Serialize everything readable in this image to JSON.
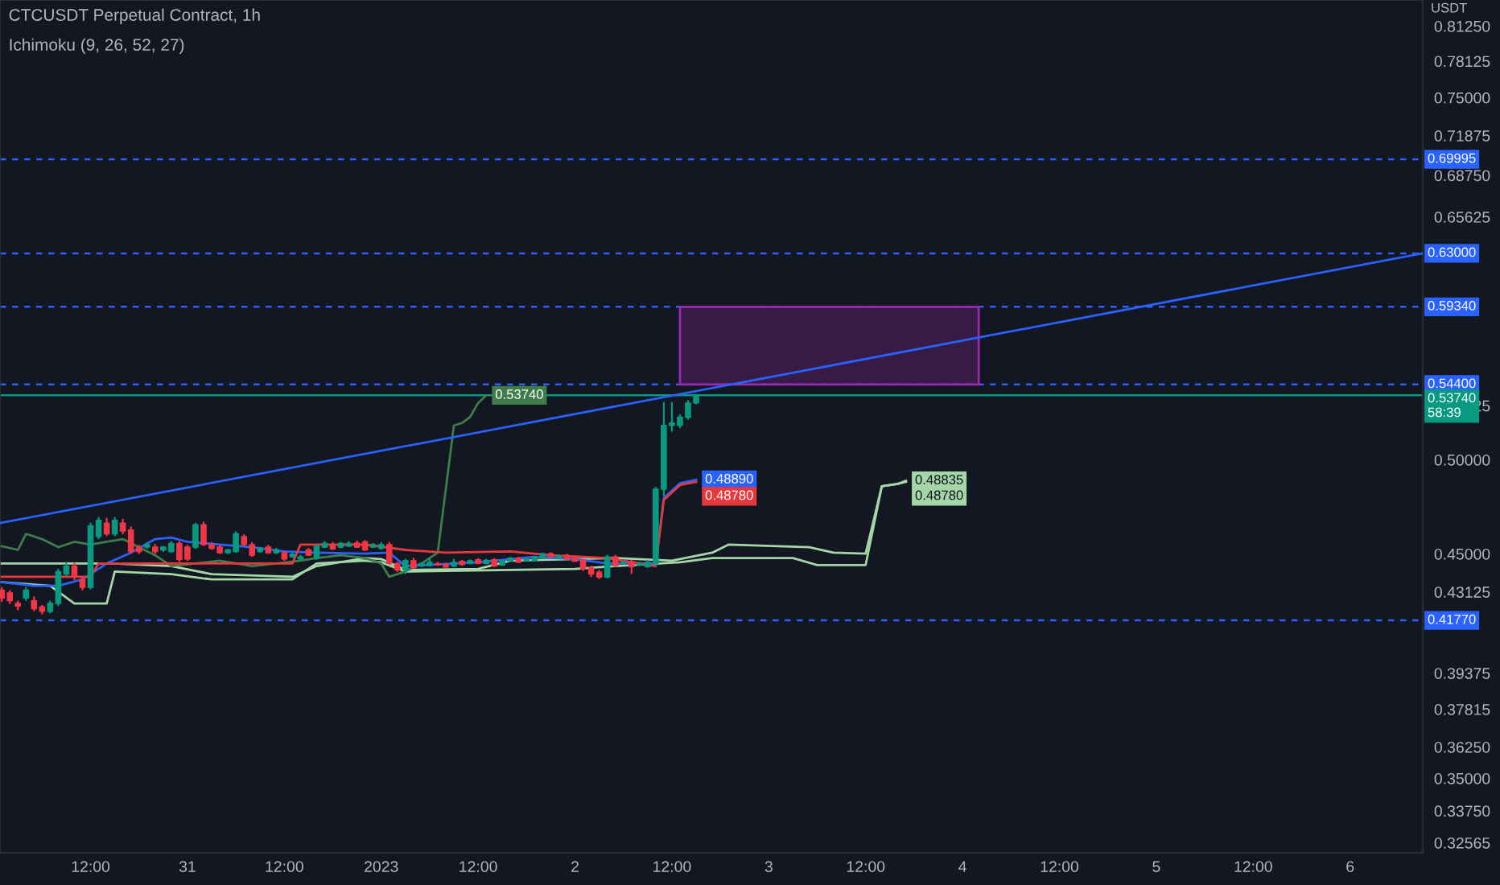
{
  "chart_data": {
    "type": "candlestick",
    "title": "CTCUSDT Perpetual Contract, 1h",
    "subtitle": "Ichimoku (9, 26, 52, 27)",
    "ylabel": "USDT",
    "log": "y",
    "ylim": [
      0.322,
      0.8366
    ],
    "xlim": [
      "2022-12-30T00:47",
      "2023-01-06T09:00"
    ],
    "yticks": [
      {
        "value": 0.8125,
        "label": "0.81250"
      },
      0.78125,
      {
        "value": 0.75,
        "label": "0.75000"
      },
      0.71875,
      {
        "value": 0.6875,
        "label": "0.68750"
      },
      0.65625,
      0.53125,
      {
        "value": 0.5,
        "label": "0.50000"
      },
      {
        "value": 0.45,
        "label": "0.45000"
      },
      0.43125,
      0.39375,
      0.37815,
      {
        "value": 0.3625,
        "label": "0.36250"
      },
      {
        "value": 0.35,
        "label": "0.35000"
      },
      {
        "value": 0.3375,
        "label": "0.33750"
      },
      0.32565
    ],
    "xticks": [
      {
        "value": "2022-12-30T12:00",
        "label": "12:00"
      },
      {
        "value": "2022-12-31",
        "label": "31"
      },
      {
        "value": "2022-12-31T12:00",
        "label": "12:00"
      },
      {
        "value": "2023-01-01",
        "label": "2023"
      },
      {
        "value": "2023-01-01T12:00",
        "label": "12:00"
      },
      {
        "value": "2023-01-02",
        "label": "2"
      },
      {
        "value": "2023-01-02T12:00",
        "label": "12:00"
      },
      {
        "value": "2023-01-03",
        "label": "3"
      },
      {
        "value": "2023-01-03T12:00",
        "label": "12:00"
      },
      {
        "value": "2023-01-04",
        "label": "4"
      },
      {
        "value": "2023-01-04T12:00",
        "label": "12:00"
      },
      {
        "value": "2023-01-05",
        "label": "5"
      },
      {
        "value": "2023-01-05T12:00",
        "label": "12:00"
      },
      {
        "value": "2023-01-06",
        "label": "6"
      }
    ],
    "x": [
      "2022-12-30T01:00",
      "2022-12-30T02:00",
      "2022-12-30T03:00",
      "2022-12-30T04:00",
      "2022-12-30T05:00",
      "2022-12-30T06:00",
      "2022-12-30T07:00",
      "2022-12-30T08:00",
      "2022-12-30T09:00",
      "2022-12-30T10:00",
      "2022-12-30T11:00",
      "2022-12-30T12:00",
      "2022-12-30T13:00",
      "2022-12-30T14:00",
      "2022-12-30T15:00",
      "2022-12-30T16:00",
      "2022-12-30T17:00",
      "2022-12-30T18:00",
      "2022-12-30T19:00",
      "2022-12-30T20:00",
      "2022-12-30T21:00",
      "2022-12-30T22:00",
      "2022-12-30T23:00",
      "2022-12-31T00:00",
      "2022-12-31T01:00",
      "2022-12-31T02:00",
      "2022-12-31T03:00",
      "2022-12-31T04:00",
      "2022-12-31T05:00",
      "2022-12-31T06:00",
      "2022-12-31T07:00",
      "2022-12-31T08:00",
      "2022-12-31T09:00",
      "2022-12-31T10:00",
      "2022-12-31T11:00",
      "2022-12-31T12:00",
      "2022-12-31T13:00",
      "2022-12-31T14:00",
      "2022-12-31T15:00",
      "2022-12-31T16:00",
      "2022-12-31T17:00",
      "2022-12-31T18:00",
      "2022-12-31T19:00",
      "2022-12-31T20:00",
      "2022-12-31T21:00",
      "2022-12-31T22:00",
      "2022-12-31T23:00",
      "2023-01-01T00:00",
      "2023-01-01T01:00",
      "2023-01-01T02:00",
      "2023-01-01T03:00",
      "2023-01-01T04:00",
      "2023-01-01T05:00",
      "2023-01-01T06:00",
      "2023-01-01T07:00",
      "2023-01-01T08:00",
      "2023-01-01T09:00",
      "2023-01-01T10:00",
      "2023-01-01T11:00",
      "2023-01-01T12:00",
      "2023-01-01T13:00",
      "2023-01-01T14:00",
      "2023-01-01T15:00",
      "2023-01-01T16:00",
      "2023-01-01T17:00",
      "2023-01-01T18:00",
      "2023-01-01T19:00",
      "2023-01-01T20:00",
      "2023-01-01T21:00",
      "2023-01-01T22:00",
      "2023-01-01T23:00",
      "2023-01-02T00:00",
      "2023-01-02T01:00",
      "2023-01-02T02:00",
      "2023-01-02T03:00",
      "2023-01-02T04:00",
      "2023-01-02T05:00",
      "2023-01-02T06:00",
      "2023-01-02T07:00",
      "2023-01-02T08:00",
      "2023-01-02T09:00",
      "2023-01-02T10:00",
      "2023-01-02T11:00",
      "2023-01-02T12:00",
      "2023-01-02T13:00",
      "2023-01-02T14:00",
      "2023-01-02T15:00"
    ],
    "ohlc": [
      [
        0.4321,
        0.4335,
        0.4265,
        0.4283
      ],
      [
        0.4308,
        0.432,
        0.4255,
        0.427
      ],
      [
        0.4257,
        0.427,
        0.4225,
        0.4245
      ],
      [
        0.4283,
        0.4335,
        0.427,
        0.4321
      ],
      [
        0.427,
        0.429,
        0.422,
        0.4232
      ],
      [
        0.424,
        0.425,
        0.4205,
        0.422
      ],
      [
        0.422,
        0.427,
        0.421,
        0.4257
      ],
      [
        0.4257,
        0.4425,
        0.4245,
        0.4412
      ],
      [
        0.4399,
        0.446,
        0.439,
        0.4439
      ],
      [
        0.4439,
        0.4455,
        0.437,
        0.4386
      ],
      [
        0.4373,
        0.439,
        0.432,
        0.4334
      ],
      [
        0.4334,
        0.466,
        0.4325,
        0.4644
      ],
      [
        0.4588,
        0.469,
        0.4575,
        0.4672
      ],
      [
        0.4658,
        0.4685,
        0.459,
        0.4602
      ],
      [
        0.4602,
        0.469,
        0.459,
        0.4672
      ],
      [
        0.4658,
        0.468,
        0.46,
        0.4616
      ],
      [
        0.4622,
        0.464,
        0.45,
        0.4512
      ],
      [
        0.4534,
        0.4545,
        0.45,
        0.4512
      ],
      [
        0.4534,
        0.456,
        0.4525,
        0.4547
      ],
      [
        0.4534,
        0.455,
        0.45,
        0.4512
      ],
      [
        0.452,
        0.454,
        0.451,
        0.4534
      ],
      [
        0.4512,
        0.4565,
        0.4505,
        0.4553
      ],
      [
        0.4553,
        0.4565,
        0.446,
        0.4471
      ],
      [
        0.4534,
        0.4545,
        0.4465,
        0.4474
      ],
      [
        0.4534,
        0.466,
        0.4525,
        0.4649
      ],
      [
        0.4649,
        0.4665,
        0.454,
        0.4547
      ],
      [
        0.4547,
        0.456,
        0.452,
        0.4528
      ],
      [
        0.4534,
        0.4545,
        0.45,
        0.4506
      ],
      [
        0.4506,
        0.4525,
        0.45,
        0.452
      ],
      [
        0.4512,
        0.4615,
        0.4505,
        0.4602
      ],
      [
        0.4588,
        0.46,
        0.454,
        0.4547
      ],
      [
        0.4547,
        0.456,
        0.4485,
        0.4493
      ],
      [
        0.4512,
        0.4535,
        0.4505,
        0.4528
      ],
      [
        0.4534,
        0.4545,
        0.45,
        0.4506
      ],
      [
        0.4506,
        0.453,
        0.45,
        0.452
      ],
      [
        0.4506,
        0.4515,
        0.4465,
        0.4474
      ],
      [
        0.4485,
        0.4505,
        0.448,
        0.4498
      ],
      [
        0.4474,
        0.4495,
        0.447,
        0.4485
      ],
      [
        0.452,
        0.453,
        0.449,
        0.4493
      ],
      [
        0.4479,
        0.455,
        0.447,
        0.4539
      ],
      [
        0.4534,
        0.4565,
        0.453,
        0.4553
      ],
      [
        0.4547,
        0.456,
        0.452,
        0.4525
      ],
      [
        0.4534,
        0.456,
        0.4528,
        0.4553
      ],
      [
        0.4539,
        0.4565,
        0.4535,
        0.4553
      ],
      [
        0.4555,
        0.4568,
        0.453,
        0.4534
      ],
      [
        0.4561,
        0.457,
        0.4515,
        0.452
      ],
      [
        0.4534,
        0.4555,
        0.453,
        0.4547
      ],
      [
        0.4528,
        0.456,
        0.452,
        0.4547
      ],
      [
        0.4547,
        0.456,
        0.4445,
        0.4452
      ],
      [
        0.4452,
        0.446,
        0.441,
        0.442
      ],
      [
        0.442,
        0.4475,
        0.44,
        0.4466
      ],
      [
        0.4466,
        0.448,
        0.4425,
        0.4431
      ],
      [
        0.4439,
        0.4458,
        0.4435,
        0.4452
      ],
      [
        0.4441,
        0.448,
        0.4436,
        0.4458
      ],
      [
        0.4452,
        0.446,
        0.444,
        0.4444
      ],
      [
        0.4447,
        0.4455,
        0.443,
        0.4434
      ],
      [
        0.4439,
        0.4475,
        0.4435,
        0.4458
      ],
      [
        0.4463,
        0.447,
        0.444,
        0.4447
      ],
      [
        0.4452,
        0.4472,
        0.4448,
        0.4466
      ],
      [
        0.4471,
        0.4478,
        0.4448,
        0.4452
      ],
      [
        0.4452,
        0.4475,
        0.4448,
        0.4468
      ],
      [
        0.4471,
        0.4478,
        0.4435,
        0.4439
      ],
      [
        0.4444,
        0.447,
        0.444,
        0.4466
      ],
      [
        0.4463,
        0.4485,
        0.446,
        0.4479
      ],
      [
        0.4479,
        0.4485,
        0.4455,
        0.4458
      ],
      [
        0.4466,
        0.448,
        0.4463,
        0.4474
      ],
      [
        0.4466,
        0.449,
        0.4462,
        0.4485
      ],
      [
        0.4479,
        0.4505,
        0.4475,
        0.4501
      ],
      [
        0.4501,
        0.4508,
        0.4482,
        0.4485
      ],
      [
        0.4479,
        0.4495,
        0.4476,
        0.449
      ],
      [
        0.4493,
        0.45,
        0.447,
        0.4474
      ],
      [
        0.4485,
        0.4492,
        0.446,
        0.4463
      ],
      [
        0.4468,
        0.4475,
        0.4415,
        0.4425
      ],
      [
        0.4431,
        0.444,
        0.4385,
        0.4399
      ],
      [
        0.4409,
        0.442,
        0.4375,
        0.4384
      ],
      [
        0.4384,
        0.4495,
        0.4378,
        0.4485
      ],
      [
        0.4485,
        0.4495,
        0.4435,
        0.4441
      ],
      [
        0.4452,
        0.4465,
        0.4445,
        0.4458
      ],
      [
        0.4463,
        0.447,
        0.44,
        0.4436
      ],
      [
        0.4444,
        0.446,
        0.444,
        0.4452
      ],
      [
        0.4436,
        0.447,
        0.443,
        0.4458
      ],
      [
        0.4453,
        0.485,
        0.444,
        0.4838
      ],
      [
        0.4838,
        0.5334,
        0.48,
        0.5196
      ],
      [
        0.5196,
        0.5334,
        0.516,
        0.521
      ],
      [
        0.5196,
        0.526,
        0.518,
        0.5245
      ],
      [
        0.5243,
        0.5345,
        0.523,
        0.5328
      ],
      [
        0.5328,
        0.538,
        0.532,
        0.5374
      ]
    ],
    "colors": [
      "#f23645",
      "#f23645",
      "#f23645",
      "#089981",
      "#f23645",
      "#f23645",
      "#089981",
      "#089981",
      "#089981",
      "#f23645",
      "#f23645",
      "#089981",
      "#089981",
      "#f23645",
      "#089981",
      "#f23645",
      "#f23645",
      "#f23645",
      "#089981",
      "#f23645",
      "#089981",
      "#089981",
      "#f23645",
      "#f23645",
      "#089981",
      "#f23645",
      "#f23645",
      "#f23645",
      "#089981",
      "#089981",
      "#f23645",
      "#f23645",
      "#089981",
      "#f23645",
      "#089981",
      "#f23645",
      "#089981",
      "#089981",
      "#f23645",
      "#089981",
      "#089981",
      "#f23645",
      "#089981",
      "#089981",
      "#f23645",
      "#f23645",
      "#089981",
      "#089981",
      "#f23645",
      "#f23645",
      "#089981",
      "#f23645",
      "#089981",
      "#089981",
      "#f23645",
      "#f23645",
      "#089981",
      "#f23645",
      "#089981",
      "#f23645",
      "#089981",
      "#f23645",
      "#089981",
      "#089981",
      "#f23645",
      "#089981",
      "#089981",
      "#089981",
      "#f23645",
      "#089981",
      "#f23645",
      "#f23645",
      "#f23645",
      "#f23645",
      "#f23645",
      "#089981",
      "#f23645",
      "#089981",
      "#f23645",
      "#089981",
      "#089981",
      "#089981",
      "#089981",
      "#089981",
      "#089981",
      "#089981",
      "#089981"
    ],
    "series": [
      {
        "type": "area",
        "color": "#9c27b0",
        "x": [
          "2023-01-02T13:00",
          "2023-01-02T13:00",
          "2023-01-04T02:00",
          "2023-01-04T02:00"
        ],
        "values": [
          0.544,
          0.5934,
          0.5934,
          0.544
        ]
      },
      {
        "type": "line",
        "color": "#a5d6a7",
        "x": [
          "2022-12-30T01:00",
          "2022-12-30T15:00",
          "2022-12-30T22:00",
          "2022-12-31T03:00",
          "2022-12-31T13:00",
          "2022-12-31T16:00",
          "2022-12-31T22:00",
          "2023-01-01T00:00",
          "2023-01-01T03:00",
          "2023-01-01T12:00",
          "2023-01-01T16:00",
          "2023-01-02T05:00",
          "2023-01-02T12:00",
          "2023-01-02T17:00",
          "2023-01-02T19:00",
          "2023-01-03T05:00",
          "2023-01-03T08:00",
          "2023-01-03T12:00",
          "2023-01-03T14:00",
          "2023-01-03T16:00",
          "2023-01-03T17:00"
        ],
        "values": [
          0.4452,
          0.4452,
          0.4439,
          0.4399,
          0.4386,
          0.4439,
          0.4479,
          0.4474,
          0.442,
          0.4425,
          0.4466,
          0.4479,
          0.4466,
          0.4506,
          0.4547,
          0.4534,
          0.4506,
          0.4501,
          0.4854,
          0.4867,
          0.48835
        ],
        "value_labels": [
          null,
          null,
          null,
          null,
          null,
          null,
          null,
          null,
          null,
          null,
          null,
          null,
          null,
          null,
          null,
          null,
          null,
          null,
          null,
          null,
          "0.48835"
        ]
      },
      {
        "type": "line",
        "color": "#a5d6a7",
        "x": [
          "2022-12-30T01:00",
          "2022-12-30T07:00",
          "2022-12-30T10:00",
          "2022-12-30T14:00",
          "2022-12-30T15:00",
          "2022-12-30T22:00",
          "2022-12-31T03:00",
          "2022-12-31T13:00",
          "2022-12-31T16:00",
          "2022-12-31T22:00",
          "2023-01-01T00:00",
          "2023-01-01T03:00",
          "2023-01-01T16:00",
          "2023-01-02T00:00",
          "2023-01-02T05:00",
          "2023-01-02T13:00",
          "2023-01-02T17:00",
          "2023-01-03T03:00",
          "2023-01-03T06:00",
          "2023-01-03T12:00",
          "2023-01-03T14:00",
          "2023-01-03T16:00",
          "2023-01-03T17:00"
        ],
        "values": [
          0.436,
          0.4342,
          0.4257,
          0.4257,
          0.4412,
          0.4399,
          0.4373,
          0.4373,
          0.4452,
          0.4466,
          0.4458,
          0.4412,
          0.442,
          0.4425,
          0.4439,
          0.4458,
          0.4479,
          0.4479,
          0.4444,
          0.4444,
          0.4854,
          0.4867,
          0.4878
        ],
        "value_labels": [
          null,
          null,
          null,
          null,
          null,
          null,
          null,
          null,
          null,
          null,
          null,
          null,
          null,
          null,
          null,
          null,
          null,
          null,
          null,
          null,
          null,
          null,
          "0.48780"
        ]
      },
      {
        "type": "line",
        "color": "#3e7d4a",
        "x": [
          "2022-12-30T01:00",
          "2022-12-30T03:00",
          "2022-12-30T04:00",
          "2022-12-30T06:00",
          "2022-12-30T08:00",
          "2022-12-30T10:00",
          "2022-12-30T12:00",
          "2022-12-30T14:00",
          "2022-12-30T16:00",
          "2022-12-30T20:00",
          "2022-12-30T22:00",
          "2022-12-31T01:00",
          "2022-12-31T04:00",
          "2022-12-31T08:00",
          "2022-12-31T11:00",
          "2022-12-31T14:00",
          "2022-12-31T16:00",
          "2022-12-31T19:00",
          "2022-12-31T22:00",
          "2023-01-01T00:00",
          "2023-01-01T01:00",
          "2023-01-01T03:00",
          "2023-01-01T05:00",
          "2023-01-01T07:00",
          "2023-01-01T08:00",
          "2023-01-01T09:00",
          "2023-01-01T10:00",
          "2023-01-01T11:00",
          "2023-01-01T12:00",
          "2023-01-01T13:00"
        ],
        "values": [
          0.4539,
          0.452,
          0.4602,
          0.4575,
          0.4534,
          0.4561,
          0.4547,
          0.4561,
          0.4575,
          0.4493,
          0.4439,
          0.4452,
          0.4466,
          0.4439,
          0.4452,
          0.4466,
          0.4479,
          0.4493,
          0.4479,
          0.4452,
          0.4386,
          0.4412,
          0.4452,
          0.4506,
          0.4838,
          0.5196,
          0.521,
          0.5245,
          0.5328,
          0.5374
        ],
        "value_labels": [
          null,
          null,
          null,
          null,
          null,
          null,
          null,
          null,
          null,
          null,
          null,
          null,
          null,
          null,
          null,
          null,
          null,
          null,
          null,
          null,
          null,
          null,
          null,
          null,
          null,
          null,
          null,
          null,
          null,
          "0.53740"
        ]
      },
      {
        "type": "line",
        "color": "#2962ff",
        "x": [
          "2022-12-30T01:00",
          "2022-12-30T05:00",
          "2022-12-30T08:00",
          "2022-12-30T11:00",
          "2022-12-30T14:00",
          "2022-12-30T17:00",
          "2022-12-30T20:00",
          "2022-12-30T22:00",
          "2022-12-31T00:00",
          "2022-12-31T04:00",
          "2022-12-31T08:00",
          "2022-12-31T12:00",
          "2022-12-31T16:00",
          "2022-12-31T22:00",
          "2023-01-01T01:00",
          "2023-01-01T03:00",
          "2023-01-01T12:00",
          "2023-01-01T19:00",
          "2023-01-02T00:00",
          "2023-01-02T04:00",
          "2023-01-02T10:00",
          "2023-01-02T11:00",
          "2023-01-02T13:00",
          "2023-01-02T15:00"
        ],
        "values": [
          0.436,
          0.4342,
          0.4342,
          0.4373,
          0.4452,
          0.4506,
          0.4575,
          0.4583,
          0.4561,
          0.4547,
          0.4534,
          0.4512,
          0.4506,
          0.4501,
          0.4506,
          0.4439,
          0.4458,
          0.4485,
          0.4474,
          0.4452,
          0.4452,
          0.479,
          0.487,
          0.4889
        ],
        "value_labels": [
          null,
          null,
          null,
          null,
          null,
          null,
          null,
          null,
          null,
          null,
          null,
          null,
          null,
          null,
          null,
          null,
          null,
          null,
          null,
          null,
          null,
          null,
          null,
          "0.48890"
        ]
      },
      {
        "type": "line",
        "color": "#e5393b",
        "x": [
          "2022-12-30T01:00",
          "2022-12-30T12:00",
          "2022-12-30T13:00",
          "2022-12-31T13:00",
          "2022-12-31T14:00",
          "2022-12-31T22:00",
          "2023-01-01T03:00",
          "2023-01-01T08:00",
          "2023-01-01T16:00",
          "2023-01-01T21:00",
          "2023-01-02T04:00",
          "2023-01-02T10:00",
          "2023-01-02T11:00",
          "2023-01-02T13:00",
          "2023-01-02T15:00"
        ],
        "values": [
          0.4386,
          0.4386,
          0.4452,
          0.4452,
          0.4547,
          0.4547,
          0.452,
          0.4506,
          0.4512,
          0.4493,
          0.4479,
          0.4439,
          0.478,
          0.486,
          0.4878
        ],
        "value_labels": [
          null,
          null,
          null,
          null,
          null,
          null,
          null,
          null,
          null,
          null,
          null,
          null,
          null,
          null,
          "0.48780"
        ]
      },
      {
        "type": "line",
        "color": "#2962ff",
        "x": [
          "2022-12-30T00:47",
          "2023-01-06T09:00"
        ],
        "values": [
          0.4658,
          0.63
        ]
      }
    ],
    "ref_lines": [
      {
        "axis": "y",
        "value": 0.69995,
        "label": "0.69995",
        "color": "#2962ff",
        "line_style": "dashed"
      },
      {
        "axis": "y",
        "value": 0.63,
        "label": "0.63000",
        "color": "#2962ff",
        "line_style": "dashed"
      },
      {
        "axis": "y",
        "value": 0.5934,
        "label": "0.59340",
        "color": "#2962ff",
        "line_style": "dashed"
      },
      {
        "axis": "y",
        "value": 0.544,
        "label": "0.54400",
        "color": "#2962ff",
        "line_style": "dashed"
      },
      {
        "axis": "y",
        "value": 0.5374,
        "label": "0.53740\n58:39",
        "color": "#089981",
        "line_style": "solid"
      },
      {
        "axis": "y",
        "value": 0.4177,
        "label": "0.41770",
        "color": "#2962ff",
        "line_style": "dashed"
      }
    ]
  }
}
